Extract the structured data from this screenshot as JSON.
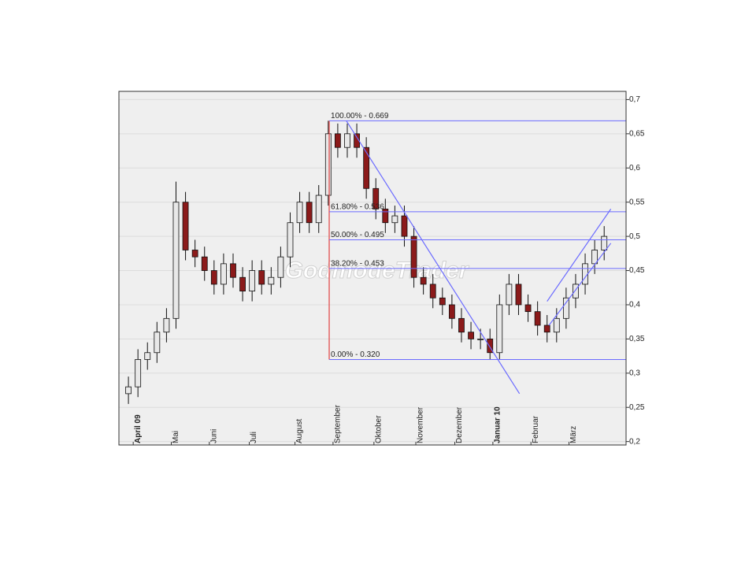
{
  "chart_data": {
    "type": "candlestick",
    "watermark": "GodmodeTrader",
    "x": [
      0,
      1,
      2,
      3,
      4,
      5,
      6,
      7,
      8,
      9,
      10,
      11,
      12,
      13,
      14,
      15,
      16,
      17,
      18,
      19,
      20,
      21,
      22,
      23,
      24,
      25,
      26,
      27,
      28,
      29,
      30,
      31,
      32,
      33,
      34,
      35,
      36,
      37,
      38,
      39,
      40,
      41,
      42,
      43,
      44,
      45,
      46,
      47,
      48,
      49,
      50
    ],
    "open": [
      0.27,
      0.28,
      0.32,
      0.33,
      0.36,
      0.38,
      0.55,
      0.48,
      0.47,
      0.45,
      0.43,
      0.46,
      0.44,
      0.42,
      0.45,
      0.43,
      0.44,
      0.47,
      0.52,
      0.55,
      0.52,
      0.56,
      0.65,
      0.63,
      0.65,
      0.63,
      0.57,
      0.54,
      0.52,
      0.53,
      0.5,
      0.44,
      0.43,
      0.41,
      0.4,
      0.38,
      0.36,
      0.35,
      0.35,
      0.33,
      0.4,
      0.43,
      0.4,
      0.39,
      0.37,
      0.36,
      0.38,
      0.41,
      0.43,
      0.46,
      0.48
    ],
    "high": [
      0.295,
      0.335,
      0.345,
      0.375,
      0.395,
      0.58,
      0.565,
      0.495,
      0.485,
      0.465,
      0.475,
      0.475,
      0.455,
      0.465,
      0.465,
      0.455,
      0.485,
      0.535,
      0.565,
      0.565,
      0.575,
      0.669,
      0.665,
      0.665,
      0.665,
      0.645,
      0.585,
      0.555,
      0.545,
      0.545,
      0.515,
      0.455,
      0.445,
      0.425,
      0.415,
      0.395,
      0.375,
      0.365,
      0.365,
      0.415,
      0.445,
      0.445,
      0.415,
      0.405,
      0.385,
      0.395,
      0.425,
      0.445,
      0.475,
      0.495,
      0.515
    ],
    "low": [
      0.255,
      0.265,
      0.305,
      0.315,
      0.345,
      0.365,
      0.465,
      0.455,
      0.435,
      0.415,
      0.415,
      0.425,
      0.405,
      0.405,
      0.415,
      0.415,
      0.425,
      0.455,
      0.505,
      0.505,
      0.505,
      0.545,
      0.615,
      0.615,
      0.615,
      0.555,
      0.525,
      0.505,
      0.505,
      0.485,
      0.425,
      0.415,
      0.395,
      0.385,
      0.365,
      0.345,
      0.335,
      0.335,
      0.32,
      0.32,
      0.385,
      0.385,
      0.375,
      0.355,
      0.345,
      0.345,
      0.365,
      0.395,
      0.415,
      0.445,
      0.465
    ],
    "close": [
      0.28,
      0.32,
      0.33,
      0.36,
      0.38,
      0.55,
      0.48,
      0.47,
      0.45,
      0.43,
      0.46,
      0.44,
      0.42,
      0.45,
      0.43,
      0.44,
      0.47,
      0.52,
      0.55,
      0.52,
      0.56,
      0.65,
      0.63,
      0.65,
      0.63,
      0.57,
      0.54,
      0.52,
      0.53,
      0.5,
      0.44,
      0.43,
      0.41,
      0.4,
      0.38,
      0.36,
      0.35,
      0.35,
      0.33,
      0.4,
      0.43,
      0.4,
      0.39,
      0.37,
      0.36,
      0.38,
      0.41,
      0.43,
      0.46,
      0.48,
      0.5
    ],
    "up_color": "#e8e8e8",
    "down_color": "#8b1a1a",
    "xlim": [
      -1,
      52.3
    ],
    "xticks": [
      {
        "value": 1,
        "label": "April 09",
        "bold": true
      },
      {
        "value": 5,
        "label": "Mai"
      },
      {
        "value": 9,
        "label": "Juni"
      },
      {
        "value": 13.2,
        "label": "Juli"
      },
      {
        "value": 18,
        "label": "August"
      },
      {
        "value": 22,
        "label": "September"
      },
      {
        "value": 26.3,
        "label": "Oktober"
      },
      {
        "value": 30.7,
        "label": "November"
      },
      {
        "value": 34.8,
        "label": "Dezember"
      },
      {
        "value": 38.8,
        "label": "Januar 10",
        "bold": true
      },
      {
        "value": 42.8,
        "label": "Februar"
      },
      {
        "value": 46.8,
        "label": "März"
      }
    ],
    "ylim": [
      0.195,
      0.712
    ],
    "yticks": [
      {
        "value": 0.2,
        "label": "0,2"
      },
      {
        "value": 0.25,
        "label": "0,25"
      },
      {
        "value": 0.3,
        "label": "0,3"
      },
      {
        "value": 0.35,
        "label": "0,35"
      },
      {
        "value": 0.4,
        "label": "0,4"
      },
      {
        "value": 0.45,
        "label": "0,45"
      },
      {
        "value": 0.5,
        "label": "0,5"
      },
      {
        "value": 0.55,
        "label": "0,55"
      },
      {
        "value": 0.6,
        "label": "0,6"
      },
      {
        "value": 0.65,
        "label": "0,65"
      },
      {
        "value": 0.7,
        "label": "0,7"
      }
    ],
    "grid": true,
    "fibonacci": {
      "x_start": 21.1,
      "color": "#6b6bff",
      "anchor_color": "#e04040",
      "levels": [
        {
          "value": 0.669,
          "label": "100.00% - 0.669"
        },
        {
          "value": 0.536,
          "label": "61.80% - 0.536"
        },
        {
          "value": 0.495,
          "label": "50.00% - 0.495"
        },
        {
          "value": 0.453,
          "label": "38.20% - 0.453"
        },
        {
          "value": 0.32,
          "label": "0.00% - 0.320"
        }
      ]
    },
    "trendlines": [
      {
        "x": [
          22.9,
          41.1
        ],
        "y": [
          0.669,
          0.27
        ]
      },
      {
        "x": [
          44.2,
          50.7
        ],
        "y": [
          0.37,
          0.49
        ]
      },
      {
        "x": [
          44,
          50.7
        ],
        "y": [
          0.405,
          0.54
        ]
      }
    ]
  }
}
